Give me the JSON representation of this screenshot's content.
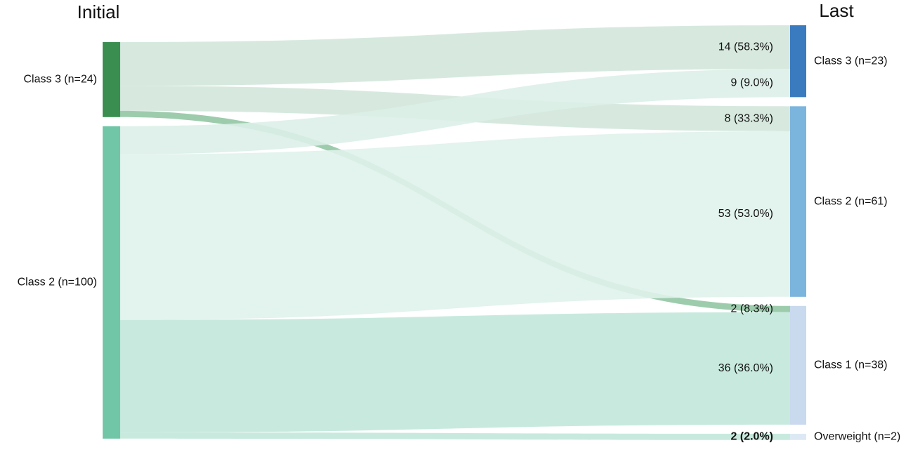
{
  "chart_data": {
    "type": "sankey",
    "column_titles": [
      "Initial",
      "Last"
    ],
    "nodes": [
      {
        "label": "Class 3 (n=24)",
        "column": 0,
        "color": "#3a8f50"
      },
      {
        "label": "Class 2 (n=100)",
        "column": 0,
        "color": "#72c6a8"
      },
      {
        "label": "Class 3 (n=23)",
        "column": 1,
        "color": "#3a7bbf"
      },
      {
        "label": "Class 2 (n=61)",
        "column": 1,
        "color": "#7bb4dc"
      },
      {
        "label": "Class 1 (n=38)",
        "column": 1,
        "color": "#c9d9ee"
      },
      {
        "label": "Overweight (n=2)",
        "column": 1,
        "color": "#dce9f5"
      }
    ],
    "links": {
      "source": [
        0,
        0,
        0,
        1,
        1,
        1,
        1
      ],
      "target": [
        2,
        3,
        4,
        2,
        3,
        4,
        5
      ],
      "values": [
        14,
        8,
        2,
        9,
        53,
        36,
        2
      ],
      "value_labels": [
        "14 (58.3%)",
        "8 (33.3%)",
        "2 (8.3%)",
        "9 (9.0%)",
        "53 (53.0%)",
        "36 (36.0%)",
        "2 (2.0%)"
      ],
      "colors": [
        "#d3e7db",
        "#d3e7db",
        "#92c7a4",
        "#dcf0e8",
        "#e0f2eb",
        "#c2e8da",
        "#c2e8da"
      ]
    }
  }
}
